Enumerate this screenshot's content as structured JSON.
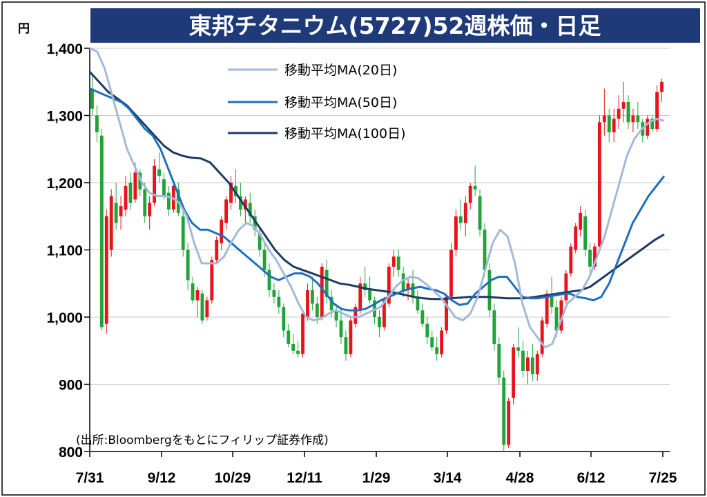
{
  "chart_data": {
    "type": "candlestick",
    "title": "東邦チタニウム(5727)52週株価・日足",
    "ylabel": "円",
    "ylim": [
      800,
      1400
    ],
    "yticks": [
      800,
      900,
      1000,
      1100,
      1200,
      1300,
      1400
    ],
    "ytick_labels": [
      "800",
      "900",
      "1,000",
      "1,100",
      "1,200",
      "1,300",
      "1,400"
    ],
    "xtick_labels": [
      "7/31",
      "9/12",
      "10/29",
      "12/11",
      "1/29",
      "3/14",
      "4/28",
      "6/12",
      "7/25"
    ],
    "grid": true,
    "legend_position": "top-center",
    "source": "(出所:Bloombergをもとにフィリップ証券作成)",
    "colors": {
      "up": "#e8141c",
      "down": "#22a33a",
      "ma20": "#a3b9d8",
      "ma50": "#1c6fbd",
      "ma100": "#1d3a63",
      "title_bg": "#1f3a78"
    },
    "candles": [
      [
        1340,
        1360,
        1300,
        1310
      ],
      [
        1300,
        1315,
        1260,
        1275
      ],
      [
        1270,
        1280,
        980,
        985
      ],
      [
        990,
        1160,
        975,
        1150
      ],
      [
        1100,
        1190,
        1090,
        1180
      ],
      [
        1170,
        1200,
        1130,
        1140
      ],
      [
        1150,
        1180,
        1130,
        1165
      ],
      [
        1160,
        1210,
        1150,
        1195
      ],
      [
        1200,
        1215,
        1160,
        1170
      ],
      [
        1175,
        1230,
        1170,
        1215
      ],
      [
        1215,
        1220,
        1180,
        1190
      ],
      [
        1190,
        1200,
        1140,
        1150
      ],
      [
        1150,
        1180,
        1130,
        1170
      ],
      [
        1170,
        1235,
        1165,
        1225
      ],
      [
        1220,
        1245,
        1200,
        1210
      ],
      [
        1205,
        1215,
        1175,
        1180
      ],
      [
        1185,
        1195,
        1150,
        1160
      ],
      [
        1160,
        1200,
        1155,
        1195
      ],
      [
        1190,
        1200,
        1150,
        1155
      ],
      [
        1150,
        1160,
        1090,
        1100
      ],
      [
        1100,
        1110,
        1040,
        1055
      ],
      [
        1050,
        1060,
        1020,
        1025
      ],
      [
        1025,
        1045,
        1000,
        1040
      ],
      [
        1035,
        1040,
        990,
        995
      ],
      [
        1000,
        1030,
        995,
        1025
      ],
      [
        1025,
        1090,
        1020,
        1085
      ],
      [
        1085,
        1120,
        1080,
        1115
      ],
      [
        1110,
        1150,
        1100,
        1145
      ],
      [
        1140,
        1180,
        1130,
        1175
      ],
      [
        1170,
        1210,
        1160,
        1200
      ],
      [
        1195,
        1220,
        1170,
        1180
      ],
      [
        1180,
        1200,
        1150,
        1160
      ],
      [
        1160,
        1180,
        1140,
        1175
      ],
      [
        1170,
        1185,
        1140,
        1150
      ],
      [
        1150,
        1160,
        1120,
        1130
      ],
      [
        1125,
        1135,
        1090,
        1100
      ],
      [
        1100,
        1110,
        1060,
        1070
      ],
      [
        1070,
        1080,
        1030,
        1040
      ],
      [
        1040,
        1050,
        1020,
        1030
      ],
      [
        1030,
        1040,
        1005,
        1015
      ],
      [
        1015,
        1020,
        970,
        980
      ],
      [
        980,
        990,
        955,
        960
      ],
      [
        960,
        975,
        945,
        950
      ],
      [
        950,
        965,
        940,
        945
      ],
      [
        945,
        1010,
        940,
        1005
      ],
      [
        1000,
        1050,
        995,
        1040
      ],
      [
        1040,
        1060,
        1010,
        1020
      ],
      [
        1020,
        1030,
        990,
        1000
      ],
      [
        1000,
        1080,
        995,
        1075
      ],
      [
        1070,
        1085,
        1020,
        1030
      ],
      [
        1030,
        1040,
        1000,
        1010
      ],
      [
        1010,
        1020,
        985,
        995
      ],
      [
        995,
        1015,
        960,
        970
      ],
      [
        970,
        980,
        935,
        945
      ],
      [
        945,
        1000,
        940,
        995
      ],
      [
        990,
        1020,
        985,
        1015
      ],
      [
        1010,
        1060,
        1005,
        1050
      ],
      [
        1050,
        1075,
        1030,
        1040
      ],
      [
        1040,
        1060,
        1020,
        1025
      ],
      [
        1025,
        1030,
        990,
        1000
      ],
      [
        1000,
        1010,
        970,
        985
      ],
      [
        985,
        1030,
        980,
        1025
      ],
      [
        1020,
        1080,
        1015,
        1075
      ],
      [
        1075,
        1100,
        1060,
        1090
      ],
      [
        1090,
        1100,
        1060,
        1070
      ],
      [
        1065,
        1075,
        1030,
        1040
      ],
      [
        1040,
        1060,
        1025,
        1050
      ],
      [
        1050,
        1070,
        1020,
        1030
      ],
      [
        1030,
        1040,
        1005,
        1010
      ],
      [
        1010,
        1020,
        985,
        990
      ],
      [
        990,
        1000,
        960,
        970
      ],
      [
        970,
        980,
        950,
        955
      ],
      [
        955,
        970,
        935,
        945
      ],
      [
        945,
        985,
        940,
        980
      ],
      [
        980,
        1035,
        975,
        1030
      ],
      [
        1030,
        1110,
        1025,
        1100
      ],
      [
        1100,
        1160,
        1090,
        1150
      ],
      [
        1150,
        1175,
        1130,
        1140
      ],
      [
        1140,
        1180,
        1120,
        1170
      ],
      [
        1170,
        1200,
        1160,
        1195
      ],
      [
        1195,
        1225,
        1180,
        1190
      ],
      [
        1180,
        1190,
        1120,
        1130
      ],
      [
        1130,
        1140,
        1060,
        1070
      ],
      [
        1070,
        1080,
        1000,
        1010
      ],
      [
        1010,
        1020,
        950,
        960
      ],
      [
        960,
        970,
        900,
        910
      ],
      [
        910,
        920,
        800,
        810
      ],
      [
        810,
        880,
        805,
        875
      ],
      [
        880,
        960,
        870,
        955
      ],
      [
        955,
        985,
        940,
        950
      ],
      [
        950,
        965,
        910,
        920
      ],
      [
        920,
        950,
        900,
        940
      ],
      [
        940,
        960,
        905,
        915
      ],
      [
        915,
        950,
        905,
        945
      ],
      [
        945,
        1000,
        940,
        995
      ],
      [
        990,
        1040,
        985,
        1035
      ],
      [
        1030,
        1060,
        1005,
        1015
      ],
      [
        1015,
        1025,
        970,
        980
      ],
      [
        980,
        1030,
        975,
        1025
      ],
      [
        1025,
        1070,
        1020,
        1065
      ],
      [
        1065,
        1110,
        1060,
        1105
      ],
      [
        1100,
        1140,
        1095,
        1135
      ],
      [
        1130,
        1165,
        1120,
        1155
      ],
      [
        1150,
        1160,
        1090,
        1100
      ],
      [
        1100,
        1110,
        1065,
        1075
      ],
      [
        1075,
        1110,
        1070,
        1105
      ],
      [
        1105,
        1300,
        1100,
        1290
      ],
      [
        1290,
        1340,
        1270,
        1300
      ],
      [
        1300,
        1310,
        1260,
        1275
      ],
      [
        1275,
        1310,
        1260,
        1295
      ],
      [
        1295,
        1330,
        1280,
        1310
      ],
      [
        1310,
        1350,
        1290,
        1320
      ],
      [
        1320,
        1330,
        1280,
        1290
      ],
      [
        1290,
        1310,
        1275,
        1300
      ],
      [
        1300,
        1320,
        1280,
        1290
      ],
      [
        1290,
        1295,
        1260,
        1270
      ],
      [
        1270,
        1300,
        1265,
        1295
      ],
      [
        1295,
        1300,
        1275,
        1280
      ],
      [
        1280,
        1345,
        1275,
        1335
      ],
      [
        1335,
        1355,
        1320,
        1350
      ]
    ],
    "ma20": [
      1400,
      1395,
      1370,
      1330,
      1290,
      1250,
      1225,
      1200,
      1185,
      1180,
      1180,
      1178,
      1170,
      1150,
      1110,
      1080,
      1080,
      1080,
      1090,
      1112,
      1130,
      1140,
      1135,
      1120,
      1100,
      1085,
      1065,
      1045,
      1020,
      1000,
      995,
      998,
      1005,
      1010,
      1005,
      1000,
      1000,
      1005,
      1010,
      1015,
      1030,
      1045,
      1055,
      1060,
      1058,
      1050,
      1040,
      1030,
      1015,
      1000,
      995,
      1005,
      1030,
      1070,
      1110,
      1130,
      1120,
      1080,
      1020,
      985,
      970,
      955,
      960,
      990,
      1020,
      1030,
      1040,
      1060,
      1090,
      1120,
      1160,
      1200,
      1240,
      1265,
      1280,
      1290,
      1295,
      1292
    ],
    "ma50": [
      1340,
      1335,
      1330,
      1325,
      1320,
      1310,
      1295,
      1280,
      1270,
      1250,
      1220,
      1190,
      1160,
      1140,
      1130,
      1130,
      1125,
      1120,
      1110,
      1100,
      1090,
      1080,
      1070,
      1060,
      1055,
      1060,
      1065,
      1065,
      1060,
      1050,
      1035,
      1020,
      1012,
      1010,
      1010,
      1012,
      1018,
      1025,
      1030,
      1035,
      1040,
      1043,
      1045,
      1042,
      1040,
      1035,
      1025,
      1018,
      1020,
      1035,
      1045,
      1055,
      1060,
      1060,
      1045,
      1030,
      1028,
      1028,
      1030,
      1032,
      1034,
      1035,
      1030,
      1028,
      1025,
      1030,
      1050,
      1080,
      1110,
      1140,
      1160,
      1180,
      1195,
      1210
    ],
    "ma100": [
      1365,
      1350,
      1335,
      1325,
      1315,
      1300,
      1285,
      1270,
      1255,
      1245,
      1240,
      1237,
      1236,
      1230,
      1215,
      1200,
      1180,
      1160,
      1140,
      1120,
      1100,
      1085,
      1075,
      1070,
      1065,
      1060,
      1055,
      1050,
      1048,
      1045,
      1042,
      1040,
      1038,
      1036,
      1033,
      1030,
      1028,
      1027,
      1027,
      1028,
      1029,
      1030,
      1030,
      1030,
      1029,
      1028,
      1028,
      1028,
      1030,
      1032,
      1034,
      1036,
      1038,
      1040,
      1045,
      1055,
      1065,
      1075,
      1085,
      1095,
      1105,
      1115,
      1123
    ]
  }
}
